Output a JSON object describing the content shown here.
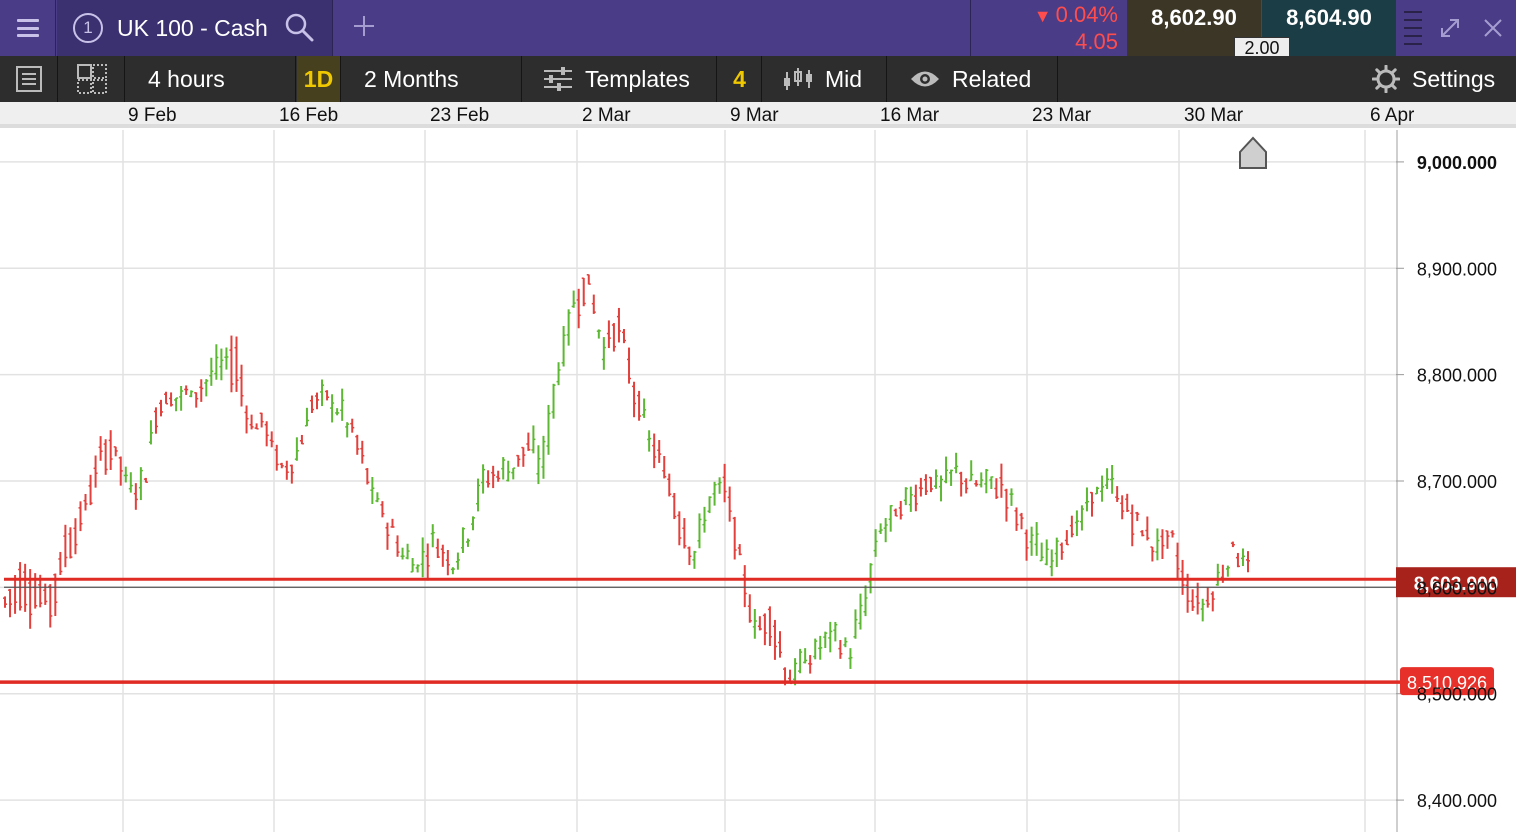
{
  "topbar": {
    "tab_number": "1",
    "market_title": "UK 100 - Cash",
    "change_percent": "0.04%",
    "change_points": "4.05",
    "sell_price": "8,602.90",
    "buy_price": "8,604.90",
    "spread": "2.00",
    "colors": {
      "bar": "#4a3c86",
      "down": "#ff4d4d"
    }
  },
  "toolbar": {
    "interval": "4 hours",
    "period_badge": "1D",
    "range": "2 Months",
    "templates": "Templates",
    "indicator_count": "4",
    "price_type": "Mid",
    "related": "Related",
    "settings": "Settings"
  },
  "chart_data": {
    "type": "candlestick",
    "x_ticks": [
      "9 Feb",
      "16 Feb",
      "23 Feb",
      "2 Mar",
      "9 Mar",
      "16 Mar",
      "23 Mar",
      "30 Mar",
      "6 Apr"
    ],
    "y_ticks": [
      "9,000.000",
      "8,900.000",
      "8,800.000",
      "8,700.000",
      "8,600.000",
      "8,500.000",
      "8,400.000"
    ],
    "ylim": [
      8370,
      9030
    ],
    "current_price_label": "8,603.900",
    "current_price": 8603.9,
    "level_label": "8,510.926",
    "level_price": 8510.926,
    "colors": {
      "up": "#5cb832",
      "down": "#e2403c",
      "line": "#e02b24",
      "current_label_bg": "#a8221c",
      "level_label_bg": "#e8302a"
    },
    "waypoints": [
      [
        8590,
        8570
      ],
      [
        8615,
        8540
      ],
      [
        8605,
        8560
      ],
      [
        8600,
        8530
      ],
      [
        8650,
        8600
      ],
      [
        8670,
        8640
      ],
      [
        8720,
        8690
      ],
      [
        8745,
        8700
      ],
      [
        8700,
        8680
      ],
      [
        8690,
        8720
      ],
      [
        8780,
        8760
      ],
      [
        8775,
        8790
      ],
      [
        8785,
        8770
      ],
      [
        8790,
        8800
      ],
      [
        8805,
        8820
      ],
      [
        8830,
        8740
      ],
      [
        8750,
        8770
      ],
      [
        8760,
        8720
      ],
      [
        8710,
        8700
      ],
      [
        8720,
        8740
      ],
      [
        8775,
        8765
      ],
      [
        8780,
        8770
      ],
      [
        8760,
        8780
      ],
      [
        8740,
        8700
      ],
      [
        8690,
        8670
      ],
      [
        8660,
        8650
      ],
      [
        8630,
        8630
      ],
      [
        8615,
        8650
      ],
      [
        8650,
        8630
      ],
      [
        8620,
        8635
      ],
      [
        8640,
        8665
      ],
      [
        8690,
        8720
      ],
      [
        8710,
        8700
      ],
      [
        8705,
        8740
      ],
      [
        8740,
        8700
      ],
      [
        8700,
        8775
      ],
      [
        8790,
        8850
      ],
      [
        8860,
        8880
      ],
      [
        8900,
        8840
      ],
      [
        8820,
        8850
      ],
      [
        8855,
        8800
      ],
      [
        8790,
        8760
      ],
      [
        8740,
        8730
      ],
      [
        8715,
        8680
      ],
      [
        8670,
        8630
      ],
      [
        8625,
        8650
      ],
      [
        8680,
        8720
      ],
      [
        8705,
        8640
      ],
      [
        8620,
        8575
      ],
      [
        8560,
        8560
      ],
      [
        8580,
        8530
      ],
      [
        8515,
        8510
      ],
      [
        8520,
        8555
      ],
      [
        8540,
        8550
      ],
      [
        8560,
        8545
      ],
      [
        8535,
        8545
      ],
      [
        8570,
        8630
      ],
      [
        8650,
        8670
      ],
      [
        8665,
        8670
      ],
      [
        8680,
        8700
      ],
      [
        8705,
        8690
      ],
      [
        8695,
        8700
      ],
      [
        8710,
        8700
      ],
      [
        8700,
        8690
      ],
      [
        8695,
        8705
      ],
      [
        8700,
        8680
      ],
      [
        8670,
        8650
      ],
      [
        8640,
        8640
      ],
      [
        8620,
        8635
      ],
      [
        8650,
        8645
      ],
      [
        8655,
        8670
      ],
      [
        8690,
        8690
      ],
      [
        8700,
        8690
      ],
      [
        8680,
        8650
      ],
      [
        8660,
        8640
      ],
      [
        8635,
        8650
      ],
      [
        8650,
        8630
      ],
      [
        8600,
        8580
      ],
      [
        8580,
        8590
      ],
      [
        8600,
        8620
      ],
      [
        8635,
        8645
      ],
      [
        8630,
        8600
      ]
    ]
  }
}
